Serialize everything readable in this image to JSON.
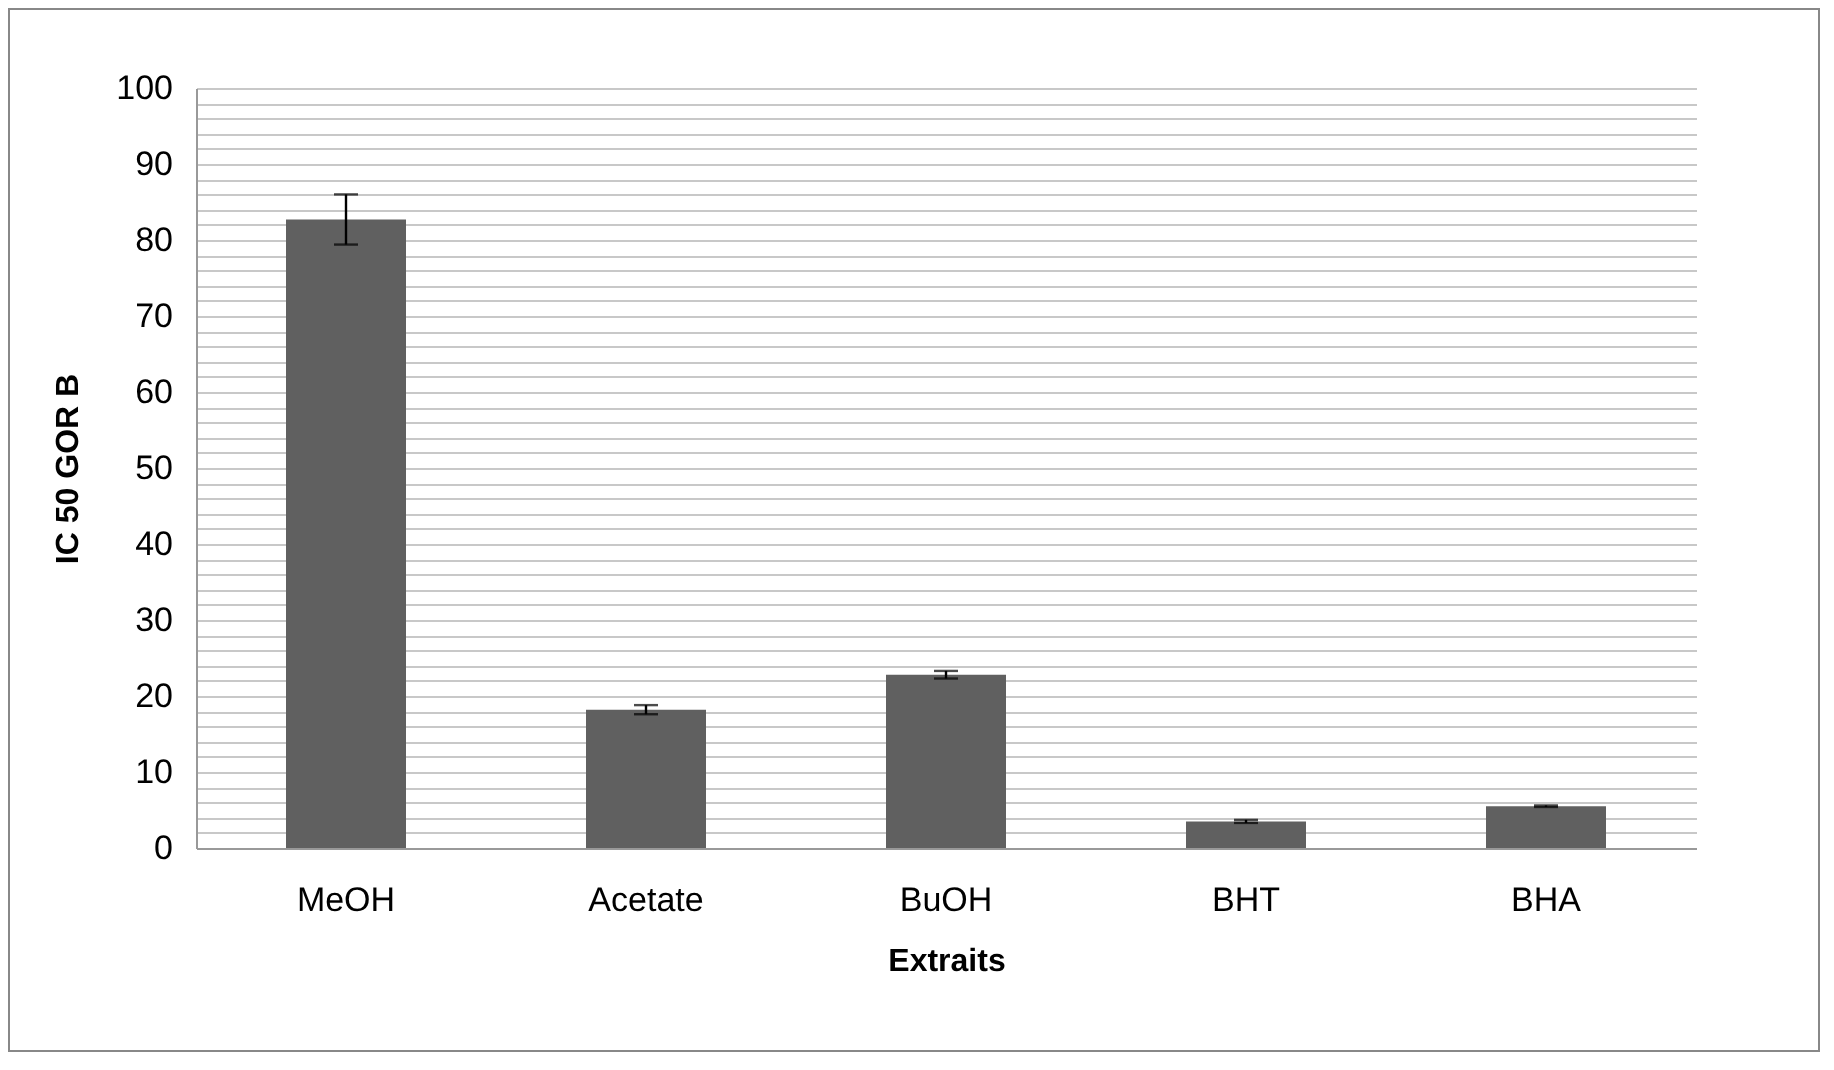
{
  "chart_data": {
    "type": "bar",
    "xlabel": "Extraits",
    "ylabel": "IC 50 GOR B",
    "categories": [
      "MeOH",
      "Acetate",
      "BuOH",
      "BHT",
      "BHA"
    ],
    "values": [
      82.7,
      18.2,
      22.8,
      3.5,
      5.5
    ],
    "errors": [
      3.3,
      0.6,
      0.5,
      0.2,
      0.1
    ],
    "color": "#606060",
    "ylim": [
      0,
      100
    ],
    "yticks": [
      0,
      {
        "value": 2,
        "label": null
      },
      {
        "value": 4,
        "label": null
      },
      {
        "value": 6,
        "label": null
      },
      {
        "value": 8,
        "label": null
      },
      10,
      {
        "value": 12,
        "label": null
      },
      {
        "value": 14,
        "label": null
      },
      {
        "value": 16,
        "label": null
      },
      {
        "value": 18,
        "label": null
      },
      20,
      {
        "value": 22,
        "label": null
      },
      {
        "value": 24,
        "label": null
      },
      {
        "value": 26,
        "label": null
      },
      {
        "value": 28,
        "label": null
      },
      30,
      {
        "value": 32,
        "label": null
      },
      {
        "value": 34,
        "label": null
      },
      {
        "value": 36,
        "label": null
      },
      {
        "value": 38,
        "label": null
      },
      40,
      {
        "value": 42,
        "label": null
      },
      {
        "value": 44,
        "label": null
      },
      {
        "value": 46,
        "label": null
      },
      {
        "value": 48,
        "label": null
      },
      50,
      {
        "value": 52,
        "label": null
      },
      {
        "value": 54,
        "label": null
      },
      {
        "value": 56,
        "label": null
      },
      {
        "value": 58,
        "label": null
      },
      60,
      {
        "value": 62,
        "label": null
      },
      {
        "value": 64,
        "label": null
      },
      {
        "value": 66,
        "label": null
      },
      {
        "value": 68,
        "label": null
      },
      70,
      {
        "value": 72,
        "label": null
      },
      {
        "value": 74,
        "label": null
      },
      {
        "value": 76,
        "label": null
      },
      {
        "value": 78,
        "label": null
      },
      80,
      {
        "value": 82,
        "label": null
      },
      {
        "value": 84,
        "label": null
      },
      {
        "value": 86,
        "label": null
      },
      {
        "value": 88,
        "label": null
      },
      90,
      {
        "value": 92,
        "label": null
      },
      {
        "value": 94,
        "label": null
      },
      {
        "value": 96,
        "label": null
      },
      {
        "value": 98,
        "label": null
      },
      100
    ],
    "grid": "y"
  }
}
